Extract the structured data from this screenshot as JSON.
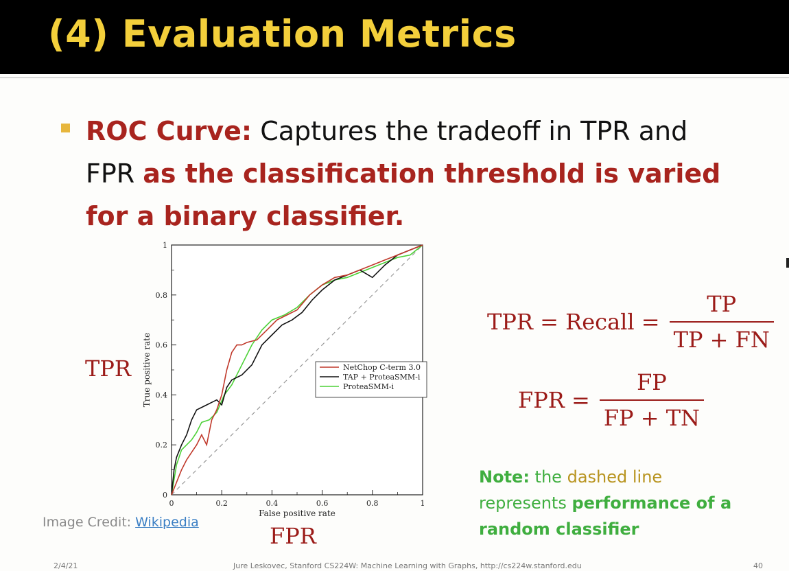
{
  "slide": {
    "title": "(4) Evaluation Metrics",
    "bullet": {
      "term": "ROC Curve:",
      "text_plain": " Captures the tradeoff in TPR and FPR ",
      "text_emph": "as the classification threshold is varied for a binary classifier."
    },
    "tpr_label": "TPR",
    "fpr_label": "FPR",
    "formula_tpr": {
      "lhs": "TPR = Recall =",
      "num": "TP",
      "den": "TP + FN"
    },
    "formula_fpr": {
      "lhs": "FPR =",
      "num": "FP",
      "den": "FP + TN"
    },
    "note": {
      "prefix": "Note:",
      "part1": " the ",
      "gold": "dashed line",
      "part2": " represents ",
      "emph": "performance of a random classifier"
    },
    "credit": {
      "prefix": "Image Credit: ",
      "link": "Wikipedia"
    },
    "footer": {
      "date": "2/4/21",
      "center": "Jure Leskovec, Stanford CS224W: Machine Learning with Graphs, http://cs224w.stanford.edu",
      "page": "40"
    }
  },
  "colors": {
    "title": "#f3cf3b",
    "red": "#a8241e",
    "green": "#3fae3f",
    "gold": "#b8941f"
  },
  "chart_data": {
    "type": "line",
    "xlabel": "False positive rate",
    "ylabel": "True positive rate",
    "xlim": [
      0,
      1
    ],
    "ylim": [
      0,
      1
    ],
    "xticks": [
      "0",
      "0.2",
      "0.4",
      "0.6",
      "0.8",
      "1"
    ],
    "yticks": [
      "0",
      "0.2",
      "0.4",
      "0.6",
      "0.8",
      "1"
    ],
    "legend_position": "center-right",
    "series": [
      {
        "name": "NetChop C-term 3.0",
        "color": "#c0392b",
        "x": [
          0,
          0.02,
          0.04,
          0.06,
          0.08,
          0.1,
          0.12,
          0.14,
          0.16,
          0.18,
          0.2,
          0.22,
          0.24,
          0.26,
          0.28,
          0.3,
          0.34,
          0.38,
          0.42,
          0.46,
          0.5,
          0.55,
          0.6,
          0.65,
          0.7,
          0.75,
          0.8,
          0.85,
          0.9,
          0.95,
          1
        ],
        "y": [
          0,
          0.05,
          0.1,
          0.14,
          0.17,
          0.2,
          0.24,
          0.2,
          0.3,
          0.34,
          0.4,
          0.5,
          0.57,
          0.6,
          0.6,
          0.61,
          0.62,
          0.66,
          0.7,
          0.72,
          0.74,
          0.8,
          0.84,
          0.87,
          0.88,
          0.9,
          0.92,
          0.94,
          0.96,
          0.98,
          1
        ]
      },
      {
        "name": "TAP + ProteaSMM-i",
        "color": "#111111",
        "x": [
          0,
          0.01,
          0.02,
          0.04,
          0.06,
          0.08,
          0.1,
          0.12,
          0.14,
          0.16,
          0.18,
          0.2,
          0.22,
          0.24,
          0.28,
          0.32,
          0.36,
          0.4,
          0.44,
          0.48,
          0.52,
          0.56,
          0.6,
          0.65,
          0.7,
          0.75,
          0.8,
          0.85,
          0.9,
          0.95,
          1
        ],
        "y": [
          0,
          0.1,
          0.15,
          0.2,
          0.24,
          0.3,
          0.34,
          0.35,
          0.36,
          0.37,
          0.38,
          0.36,
          0.43,
          0.46,
          0.48,
          0.52,
          0.6,
          0.64,
          0.68,
          0.7,
          0.73,
          0.78,
          0.82,
          0.86,
          0.88,
          0.9,
          0.87,
          0.92,
          0.96,
          0.98,
          1
        ]
      },
      {
        "name": "ProteaSMM-i",
        "color": "#4cd137",
        "x": [
          0,
          0.02,
          0.04,
          0.06,
          0.08,
          0.1,
          0.12,
          0.15,
          0.18,
          0.21,
          0.24,
          0.28,
          0.32,
          0.36,
          0.4,
          0.45,
          0.5,
          0.55,
          0.6,
          0.65,
          0.7,
          0.75,
          0.8,
          0.85,
          0.9,
          0.95,
          1
        ],
        "y": [
          0,
          0.12,
          0.18,
          0.2,
          0.22,
          0.25,
          0.29,
          0.3,
          0.33,
          0.4,
          0.44,
          0.52,
          0.6,
          0.66,
          0.7,
          0.72,
          0.75,
          0.8,
          0.84,
          0.86,
          0.87,
          0.89,
          0.91,
          0.93,
          0.95,
          0.96,
          1
        ]
      },
      {
        "name": "Random classifier",
        "color": "#999999",
        "dashed": true,
        "x": [
          0,
          1
        ],
        "y": [
          0,
          1
        ]
      }
    ]
  }
}
